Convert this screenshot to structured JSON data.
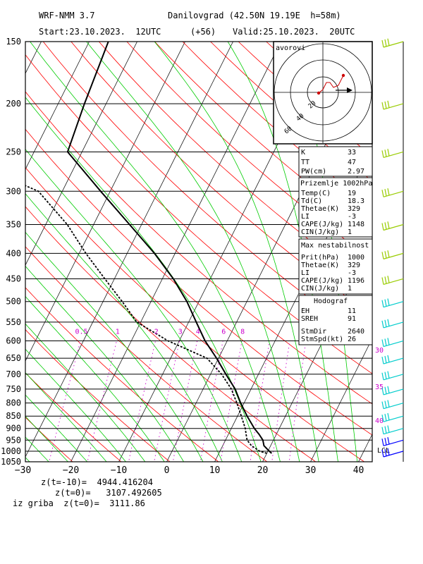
{
  "header": {
    "model": "WRF-NMM 3.7",
    "station": "Danilovgrad (42.50N 19.19E  h=58m)",
    "start": "Start:23.10.2023.  12UTC",
    "offset": "(+56)",
    "valid": "Valid:25.10.2023.  20UTC"
  },
  "chart_data": {
    "type": "skew-t",
    "pressure_levels": [
      150,
      200,
      250,
      300,
      350,
      400,
      450,
      500,
      550,
      600,
      650,
      700,
      750,
      800,
      850,
      900,
      950,
      1000,
      1050
    ],
    "x_ticks": [
      -30,
      -20,
      -10,
      0,
      10,
      20,
      30,
      40
    ],
    "xlim": [
      -30,
      42
    ],
    "ylim": [
      1050,
      150
    ],
    "mixing_ratio_labels": [
      "0.5",
      "1",
      "2",
      "3",
      "4",
      "6",
      "8"
    ],
    "right_axis_labels": [
      "30",
      "35",
      "40"
    ],
    "lcl_label": "LCL",
    "temperature_profile": [
      {
        "p": 1010,
        "t": 21.0
      },
      {
        "p": 1000,
        "t": 20.3
      },
      {
        "p": 975,
        "t": 18.6
      },
      {
        "p": 950,
        "t": 17.8
      },
      {
        "p": 925,
        "t": 16.4
      },
      {
        "p": 900,
        "t": 14.8
      },
      {
        "p": 850,
        "t": 12.0
      },
      {
        "p": 800,
        "t": 9.3
      },
      {
        "p": 750,
        "t": 6.7
      },
      {
        "p": 700,
        "t": 3.2
      },
      {
        "p": 650,
        "t": -0.4
      },
      {
        "p": 600,
        "t": -4.6
      },
      {
        "p": 550,
        "t": -8.4
      },
      {
        "p": 500,
        "t": -12.5
      },
      {
        "p": 450,
        "t": -17.7
      },
      {
        "p": 400,
        "t": -24.3
      },
      {
        "p": 350,
        "t": -32.5
      },
      {
        "p": 300,
        "t": -42.0
      },
      {
        "p": 250,
        "t": -53.0
      },
      {
        "p": 200,
        "t": -54.5
      },
      {
        "p": 150,
        "t": -56.0
      }
    ],
    "dewpoint_profile": [
      {
        "p": 1010,
        "t": 20.0
      },
      {
        "p": 1000,
        "t": 18.3
      },
      {
        "p": 975,
        "t": 16.0
      },
      {
        "p": 950,
        "t": 14.5
      },
      {
        "p": 925,
        "t": 13.7
      },
      {
        "p": 900,
        "t": 12.9
      },
      {
        "p": 850,
        "t": 10.8
      },
      {
        "p": 800,
        "t": 8.5
      },
      {
        "p": 750,
        "t": 5.9
      },
      {
        "p": 700,
        "t": 2.3
      },
      {
        "p": 650,
        "t": -2.4
      },
      {
        "p": 600,
        "t": -12.3
      },
      {
        "p": 550,
        "t": -20.8
      },
      {
        "p": 500,
        "t": -26.0
      },
      {
        "p": 450,
        "t": -32.0
      },
      {
        "p": 400,
        "t": -38.6
      },
      {
        "p": 350,
        "t": -45.5
      },
      {
        "p": 300,
        "t": -55.0
      },
      {
        "p": 250,
        "t": -78.0
      },
      {
        "p": 200,
        "t": -83.5
      },
      {
        "p": 150,
        "t": -85.5
      }
    ],
    "wind_barb_levels": [
      150,
      200,
      250,
      300,
      350,
      400,
      450,
      500,
      550,
      600,
      650,
      700,
      750,
      800,
      850,
      900,
      950,
      1000
    ],
    "hodograph": {
      "label": "avorovi",
      "ring_labels": [
        "20",
        "40",
        "60"
      ]
    }
  },
  "indices": {
    "rows": [
      {
        "label": "K",
        "value": "33"
      },
      {
        "label": "TT",
        "value": "47"
      },
      {
        "label": "PW(cm)",
        "value": "2.97"
      }
    ]
  },
  "surface": {
    "title": "Prizemlje 1002hPa",
    "rows": [
      {
        "label": "Temp(C)",
        "value": "19"
      },
      {
        "label": "Td(C)",
        "value": "18.3"
      },
      {
        "label": "Thetae(K)",
        "value": "329"
      },
      {
        "label": "LI",
        "value": "-3"
      },
      {
        "label": "CAPE(J/kg)",
        "value": "1148"
      },
      {
        "label": "CIN(J/kg)",
        "value": "1"
      }
    ]
  },
  "maxunstable": {
    "title": "Max nestabilnost",
    "rows": [
      {
        "label": "Prit(hPa)",
        "value": "1000"
      },
      {
        "label": "Thetae(K)",
        "value": "329"
      },
      {
        "label": "LI",
        "value": "-3"
      },
      {
        "label": "CAPE(J/kg)",
        "value": "1196"
      },
      {
        "label": "CIN(J/kg)",
        "value": "1"
      }
    ]
  },
  "hodo_stats": {
    "title": "Hodograf",
    "rows": [
      {
        "label": "EH",
        "value": "11"
      },
      {
        "label": "SREH",
        "value": "91"
      },
      {
        "label": "StmDir",
        "value": "2640"
      },
      {
        "label": "StmSpd(kt)",
        "value": "26"
      }
    ]
  },
  "footer": {
    "line1": "z(t=-10)=  4944.416204",
    "line2": "z(t=0)=   3107.492605",
    "line3": "iz griba  z(t=0)=  3111.86"
  },
  "colors": {
    "isotherm": "#000000",
    "dry_adiabat": "#ff0000",
    "moist_adiabat": "#00cc00",
    "mixing_ratio": "#cc00cc",
    "barb_upper": "#99cc00",
    "barb_lower": "#00cccc",
    "barb_bottom": "#0000ff",
    "right_label": "#cc00cc"
  }
}
